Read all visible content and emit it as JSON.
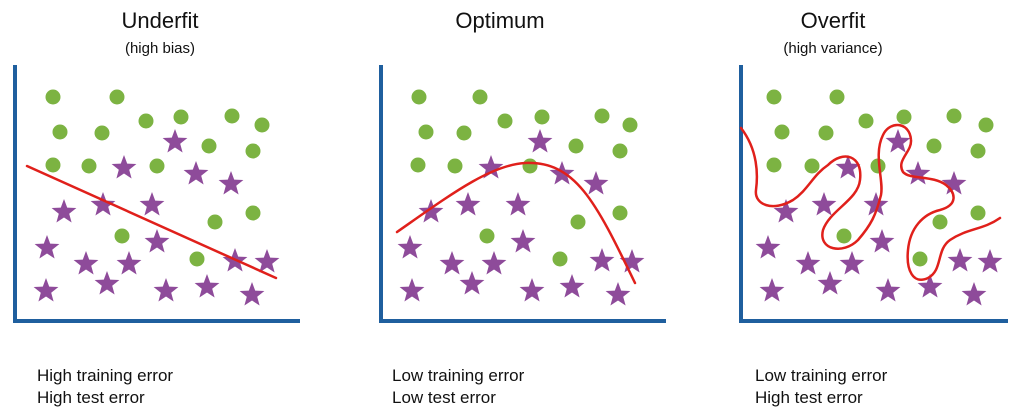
{
  "colors": {
    "axis": "#1f5f9e",
    "dot": "#7cb342",
    "star": "#8e4b9a",
    "curve": "#e0201b"
  },
  "panels": [
    {
      "key": "underfit",
      "title": "Underfit",
      "subtitle": "(high bias)",
      "caption": [
        "High training error",
        "High test error"
      ],
      "curve_shape": "straight-line"
    },
    {
      "key": "optimum",
      "title": "Optimum",
      "subtitle": "",
      "caption": [
        "Low training error",
        "Low test error"
      ],
      "curve_shape": "smooth-arc"
    },
    {
      "key": "overfit",
      "title": "Overfit",
      "subtitle": "(high variance)",
      "caption": [
        "Low training error",
        "High test error"
      ],
      "curve_shape": "wiggly-boundary"
    }
  ]
}
